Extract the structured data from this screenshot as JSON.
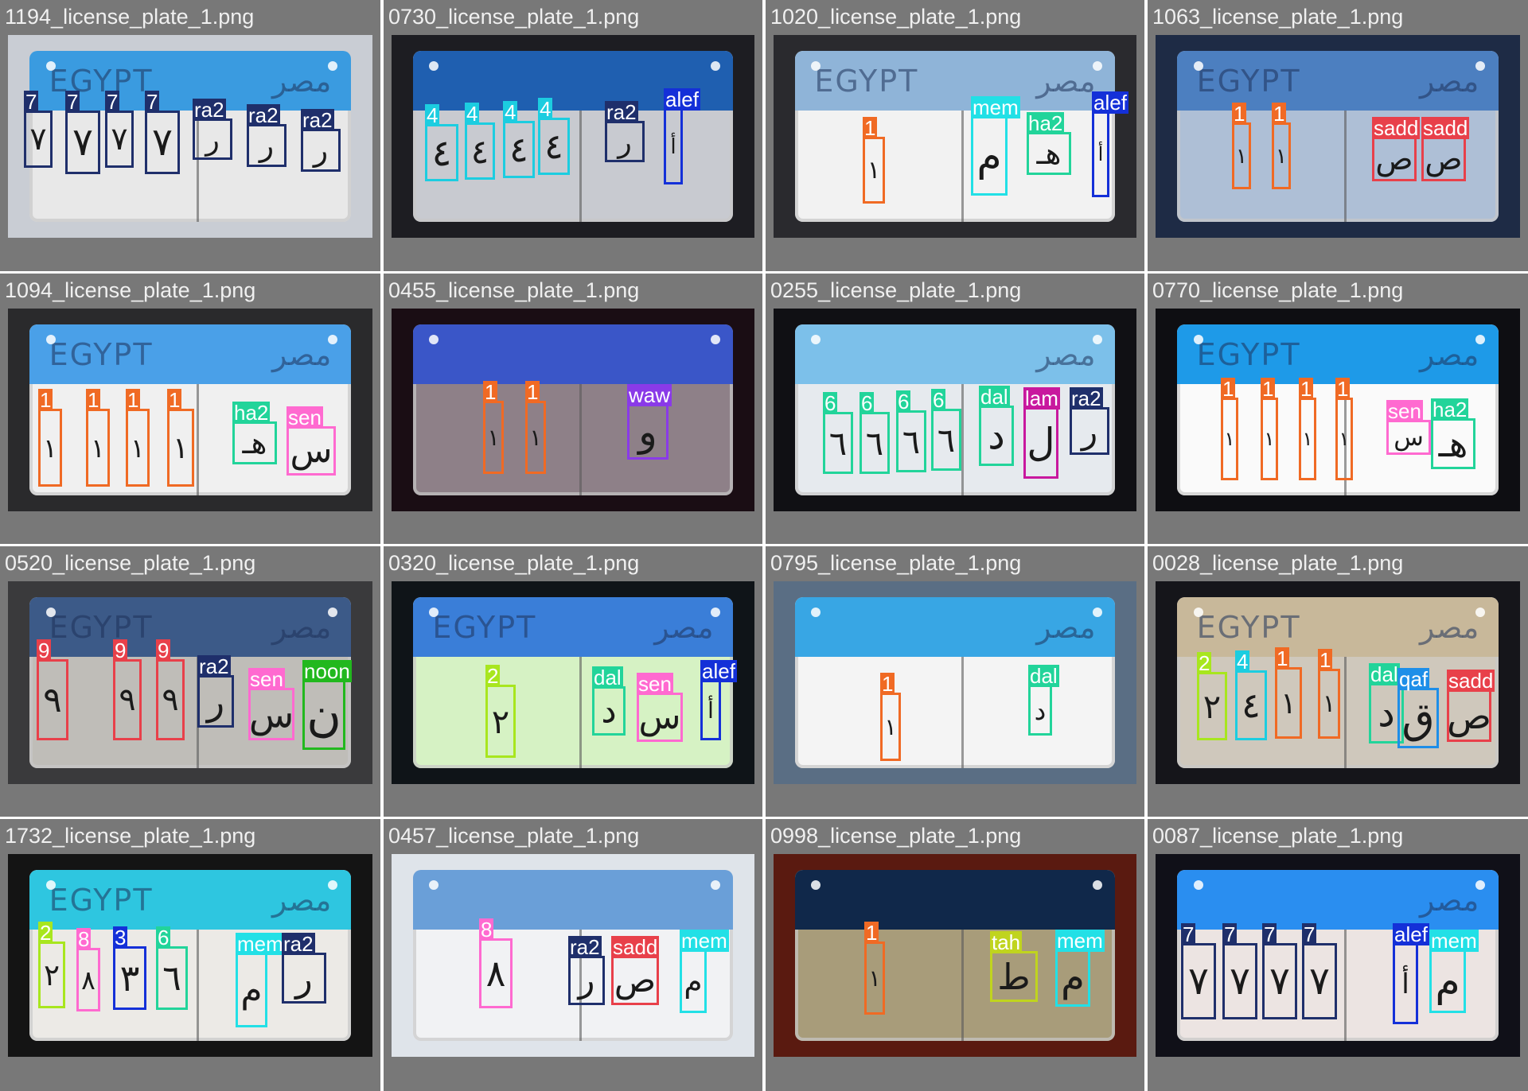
{
  "tiles": [
    {
      "title": "1194_license_plate_1.png",
      "photo_bg": "#c9cdd4",
      "band": "#3a9be0",
      "plate": "#e8e8e8",
      "band_text_left": "EGYPT",
      "band_text_right": "مصر",
      "boxes": [
        {
          "label": "7",
          "color": "#1f2f6b"
        },
        {
          "label": "7",
          "color": "#1f2f6b"
        },
        {
          "label": "7",
          "color": "#1f2f6b"
        },
        {
          "label": "7",
          "color": "#1f2f6b"
        },
        {
          "label": "ra2",
          "color": "#1f2f6b"
        },
        {
          "label": "ra2",
          "color": "#1f2f6b"
        },
        {
          "label": "ra2",
          "color": "#1f2f6b"
        }
      ]
    },
    {
      "title": "0730_license_plate_1.png",
      "photo_bg": "#1d1d22",
      "band": "#1f5fb0",
      "plate": "#c8cad0",
      "band_text_left": "",
      "band_text_right": "",
      "boxes": [
        {
          "label": "4",
          "color": "#1ccde0"
        },
        {
          "label": "4",
          "color": "#1ccde0"
        },
        {
          "label": "4",
          "color": "#1ccde0"
        },
        {
          "label": "4",
          "color": "#1ccde0"
        },
        {
          "label": "ra2",
          "color": "#1f2f6b"
        },
        {
          "label": "alef",
          "color": "#1430d8"
        }
      ]
    },
    {
      "title": "1020_license_plate_1.png",
      "photo_bg": "#2a2a2e",
      "band": "#8fb4d8",
      "plate": "#f2f2f2",
      "band_text_left": "EGYPT",
      "band_text_right": "مصر",
      "boxes": [
        {
          "label": "1",
          "color": "#f06a24"
        },
        {
          "label": "mem",
          "color": "#22e0e6"
        },
        {
          "label": "ha2",
          "color": "#22d49a"
        },
        {
          "label": "alef",
          "color": "#1430d8"
        }
      ]
    },
    {
      "title": "1063_license_plate_1.png",
      "photo_bg": "#1e2b45",
      "band": "#4c7fc0",
      "plate": "#aebfd6",
      "band_text_left": "EGYPT",
      "band_text_right": "مصر",
      "boxes": [
        {
          "label": "1",
          "color": "#f06a24"
        },
        {
          "label": "1",
          "color": "#f06a24"
        },
        {
          "label": "sadd",
          "color": "#e8404a"
        },
        {
          "label": "sadd",
          "color": "#e8404a"
        }
      ]
    },
    {
      "title": "1094_license_plate_1.png",
      "photo_bg": "#2a2a2c",
      "band": "#4aa0e8",
      "plate": "#f0f0f0",
      "band_text_left": "EGYPT",
      "band_text_right": "مصر",
      "boxes": [
        {
          "label": "1",
          "color": "#f06a24"
        },
        {
          "label": "1",
          "color": "#f06a24"
        },
        {
          "label": "1",
          "color": "#f06a24"
        },
        {
          "label": "1",
          "color": "#f06a24"
        },
        {
          "label": "ha2",
          "color": "#22d49a"
        },
        {
          "label": "sen",
          "color": "#ff6ad0"
        }
      ]
    },
    {
      "title": "0455_license_plate_1.png",
      "photo_bg": "#1a0d14",
      "band": "#3a56c8",
      "plate": "#8e8088",
      "band_text_left": "",
      "band_text_right": "",
      "boxes": [
        {
          "label": "1",
          "color": "#f06a24"
        },
        {
          "label": "1",
          "color": "#f06a24"
        },
        {
          "label": "waw",
          "color": "#8a3ae8"
        }
      ]
    },
    {
      "title": "0255_license_plate_1.png",
      "photo_bg": "#101014",
      "band": "#7cc0ea",
      "plate": "#e6eaee",
      "band_text_left": "",
      "band_text_right": "مصر",
      "boxes": [
        {
          "label": "6",
          "color": "#22d49a"
        },
        {
          "label": "6",
          "color": "#22d49a"
        },
        {
          "label": "6",
          "color": "#22d49a"
        },
        {
          "label": "6",
          "color": "#22d49a"
        },
        {
          "label": "dal",
          "color": "#22d49a"
        },
        {
          "label": "lam",
          "color": "#c8189e"
        },
        {
          "label": "ra2",
          "color": "#1f2f6b"
        }
      ]
    },
    {
      "title": "0770_license_plate_1.png",
      "photo_bg": "#0e0e12",
      "band": "#1e9ae8",
      "plate": "#fafafa",
      "band_text_left": "EGYPT",
      "band_text_right": "مصر",
      "boxes": [
        {
          "label": "1",
          "color": "#f06a24"
        },
        {
          "label": "1",
          "color": "#f06a24"
        },
        {
          "label": "1",
          "color": "#f06a24"
        },
        {
          "label": "1",
          "color": "#f06a24"
        },
        {
          "label": "sen",
          "color": "#ff6ad0"
        },
        {
          "label": "ha2",
          "color": "#22d49a"
        }
      ]
    },
    {
      "title": "0520_license_plate_1.png",
      "photo_bg": "#3a3a3c",
      "band": "#3c5a88",
      "plate": "#bfbdb8",
      "band_text_left": "EGYPT",
      "band_text_right": "مصر",
      "boxes": [
        {
          "label": "9",
          "color": "#e8404a"
        },
        {
          "label": "9",
          "color": "#e8404a"
        },
        {
          "label": "9",
          "color": "#e8404a"
        },
        {
          "label": "ra2",
          "color": "#1f2f6b"
        },
        {
          "label": "sen",
          "color": "#ff6ad0"
        },
        {
          "label": "noon",
          "color": "#22b81e"
        }
      ]
    },
    {
      "title": "0320_license_plate_1.png",
      "photo_bg": "#0f1418",
      "band": "#3a7ed8",
      "plate": "#d6f2c4",
      "band_text_left": "EGYPT",
      "band_text_right": "مصر",
      "boxes": [
        {
          "label": "2",
          "color": "#a8e61e"
        },
        {
          "label": "dal",
          "color": "#22d49a"
        },
        {
          "label": "sen",
          "color": "#ff6ad0"
        },
        {
          "label": "alef",
          "color": "#1430d8"
        }
      ]
    },
    {
      "title": "0795_license_plate_1.png",
      "photo_bg": "#5a6e84",
      "band": "#38a6e4",
      "plate": "#f4f4f4",
      "band_text_left": "",
      "band_text_right": "مصر",
      "boxes": [
        {
          "label": "1",
          "color": "#f06a24"
        },
        {
          "label": "dal",
          "color": "#22d49a"
        }
      ]
    },
    {
      "title": "0028_license_plate_1.png",
      "photo_bg": "#15151a",
      "band": "#c8b89a",
      "plate": "#cfc8bc",
      "band_text_left": "EGYPT",
      "band_text_right": "مصر",
      "boxes": [
        {
          "label": "2",
          "color": "#a8e61e"
        },
        {
          "label": "4",
          "color": "#1ccde0"
        },
        {
          "label": "1",
          "color": "#f06a24"
        },
        {
          "label": "1",
          "color": "#f06a24"
        },
        {
          "label": "dal",
          "color": "#22d49a"
        },
        {
          "label": "qaf",
          "color": "#1e8ee8"
        },
        {
          "label": "sadd",
          "color": "#e8404a"
        }
      ]
    },
    {
      "title": "1732_license_plate_1.png",
      "photo_bg": "#141414",
      "band": "#2ec6e0",
      "plate": "#eceae6",
      "band_text_left": "EGYPT",
      "band_text_right": "مصر",
      "boxes": [
        {
          "label": "2",
          "color": "#a8e61e"
        },
        {
          "label": "8",
          "color": "#ff6ad0"
        },
        {
          "label": "3",
          "color": "#1430d8"
        },
        {
          "label": "6",
          "color": "#22d49a"
        },
        {
          "label": "mem",
          "color": "#22e0e6"
        },
        {
          "label": "ra2",
          "color": "#1f2f6b"
        }
      ]
    },
    {
      "title": "0457_license_plate_1.png",
      "photo_bg": "#dfe4ea",
      "band": "#6a9fd8",
      "plate": "#f1f2f4",
      "band_text_left": "",
      "band_text_right": "",
      "boxes": [
        {
          "label": "8",
          "color": "#ff6ad0"
        },
        {
          "label": "ra2",
          "color": "#1f2f6b"
        },
        {
          "label": "sadd",
          "color": "#e8404a"
        },
        {
          "label": "mem",
          "color": "#22e0e6"
        }
      ]
    },
    {
      "title": "0998_license_plate_1.png",
      "photo_bg": "#5a1a10",
      "band": "#10284a",
      "plate": "#a89c7a",
      "band_text_left": "",
      "band_text_right": "",
      "boxes": [
        {
          "label": "1",
          "color": "#f06a24"
        },
        {
          "label": "tah",
          "color": "#c0d41e"
        },
        {
          "label": "mem",
          "color": "#22e0e6"
        }
      ]
    },
    {
      "title": "0087_license_plate_1.png",
      "photo_bg": "#101018",
      "band": "#2a8ef0",
      "plate": "#ece4e2",
      "band_text_left": "",
      "band_text_right": "مصر",
      "boxes": [
        {
          "label": "7",
          "color": "#1f2f6b"
        },
        {
          "label": "7",
          "color": "#1f2f6b"
        },
        {
          "label": "7",
          "color": "#1f2f6b"
        },
        {
          "label": "7",
          "color": "#1f2f6b"
        },
        {
          "label": "alef",
          "color": "#1430d8"
        },
        {
          "label": "mem",
          "color": "#22e0e6"
        }
      ]
    }
  ]
}
